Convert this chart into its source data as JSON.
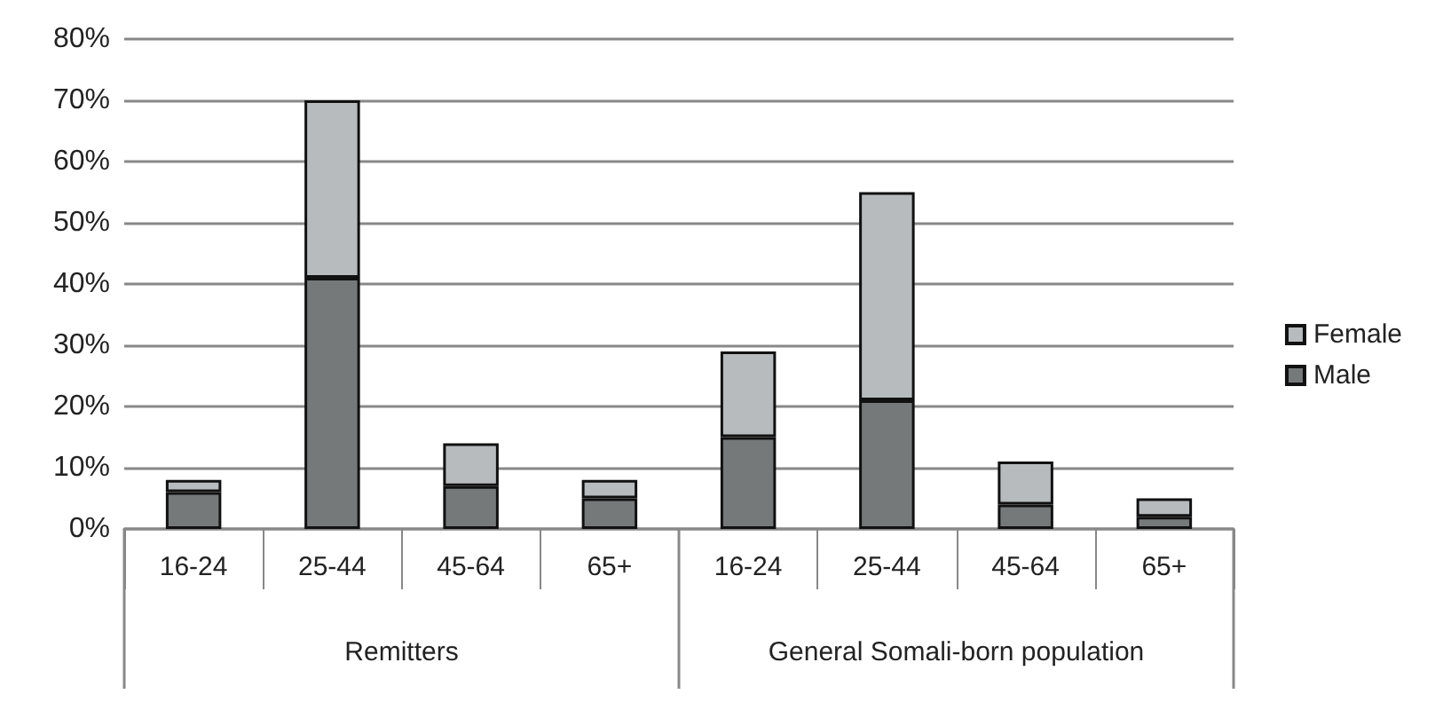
{
  "chart_data": {
    "type": "bar",
    "stacked": true,
    "categories": [
      "16-24",
      "25-44",
      "45-64",
      "65+",
      "16-24",
      "25-44",
      "45-64",
      "65+"
    ],
    "series": [
      {
        "name": "Male",
        "color": "#76797a",
        "values": [
          6,
          41,
          7,
          5,
          15,
          21,
          4,
          2
        ]
      },
      {
        "name": "Female",
        "color": "#b7bbbd",
        "values": [
          2,
          29,
          7,
          3,
          14,
          34,
          7,
          3
        ]
      }
    ],
    "ylim": [
      0,
      80
    ],
    "yticks": [
      {
        "value": 0,
        "label": "0%"
      },
      {
        "value": 10,
        "label": "10%"
      },
      {
        "value": 20,
        "label": "20%"
      },
      {
        "value": 30,
        "label": "30%"
      },
      {
        "value": 40,
        "label": "40%"
      },
      {
        "value": 50,
        "label": "50%"
      },
      {
        "value": 60,
        "label": "60%"
      },
      {
        "value": 70,
        "label": "70%"
      },
      {
        "value": 80,
        "label": "80%"
      }
    ],
    "grid": "y",
    "legend": "right",
    "annotations": [
      "Remitters",
      "General Somali-born population"
    ]
  }
}
